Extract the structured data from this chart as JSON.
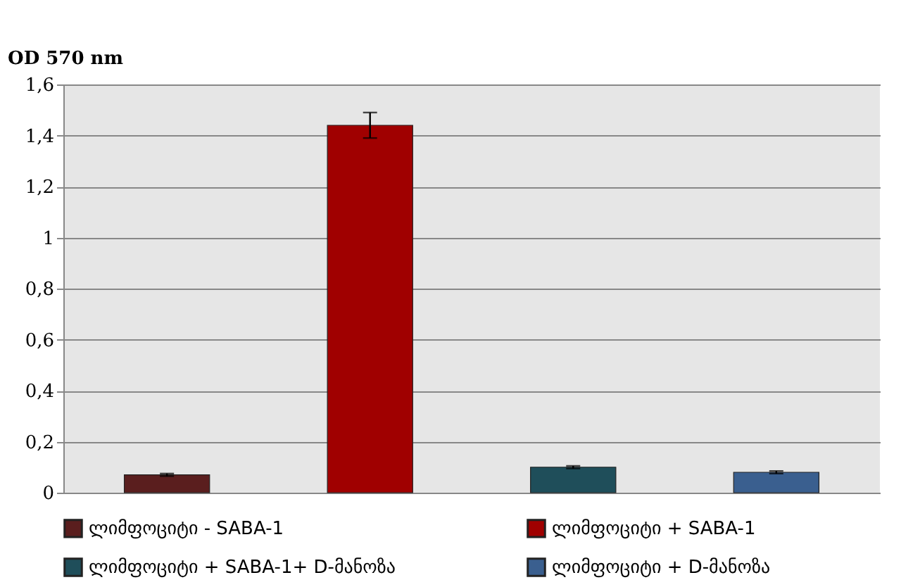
{
  "chart_data": {
    "type": "bar",
    "ylabel": "OD 570 nm",
    "categories": [
      null
    ],
    "series": [
      {
        "name": "ლიმფოციტი -  SABA-1",
        "color": "#5a1e1e",
        "values": [
          0.07
        ],
        "errors": [
          0.005
        ]
      },
      {
        "name": "ლიმფოციტი + SABA-1",
        "color": "#a00000",
        "values": [
          1.44
        ],
        "errors": [
          0.05
        ]
      },
      {
        "name": "ლიმფოციტი + SABA-1+ D-მანოზა",
        "color": "#1f4e5a",
        "values": [
          0.1
        ],
        "errors": [
          0.005
        ]
      },
      {
        "name": "ლიმფოციტი + D-მანოზა",
        "color": "#3a5f8f",
        "values": [
          0.08
        ],
        "errors": [
          0.005
        ]
      }
    ],
    "ylim": [
      0,
      1.6
    ],
    "yticks": [
      0,
      {
        "value": 0.2,
        "label": "0,2"
      },
      {
        "value": 0.4,
        "label": "0,4"
      },
      {
        "value": 0.6,
        "label": "0,6"
      },
      {
        "value": 0.8,
        "label": "0,8"
      },
      1,
      {
        "value": 1.2,
        "label": "1,2"
      },
      {
        "value": 1.4,
        "label": "1,4"
      },
      {
        "value": 1.6,
        "label": "1,6"
      }
    ],
    "grid": "y",
    "legend": "bottom"
  }
}
